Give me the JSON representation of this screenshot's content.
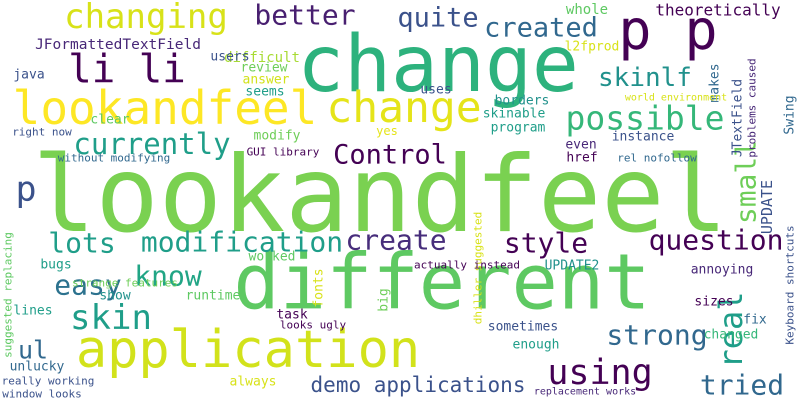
{
  "words": [
    "lookandfeel",
    "change",
    "different",
    "application",
    "lookandfeel",
    "change",
    "changing",
    "better",
    "quite",
    "created",
    "p p",
    "li li",
    "skinlf",
    "possible",
    "currently",
    "Control",
    "p",
    "small",
    "real",
    "UPDATE",
    "lots",
    "modification",
    "create",
    "style",
    "question",
    "know",
    "easy",
    "skin",
    "strong",
    "ul",
    "using",
    "tried",
    "demo applications",
    "theoretically",
    "whole",
    "JFormattedTextField",
    "difficult",
    "users",
    "review",
    "answer",
    "java",
    "seems",
    "uses",
    "l2fprod",
    "makes",
    "JTextField",
    "problems caused",
    "Swing",
    "world environment",
    "borders",
    "skinable",
    "program",
    "instance",
    "clear",
    "yes",
    "modify",
    "right now",
    "without modifying",
    "GUI library",
    "even",
    "href",
    "rel nofollow",
    "big",
    "dhiller suggested",
    "Keyboard shortcuts",
    "suggested replacing",
    "bugs",
    "strange features",
    "worked",
    "UPDATE2",
    "annoying",
    "sizes",
    "fix",
    "changed",
    "actually instead",
    "fonts",
    "show",
    "runtime",
    "lines",
    "task",
    "sometimes",
    "looks ugly",
    "enough",
    "unlucky",
    "really working",
    "window looks",
    "always",
    "replacement works"
  ]
}
